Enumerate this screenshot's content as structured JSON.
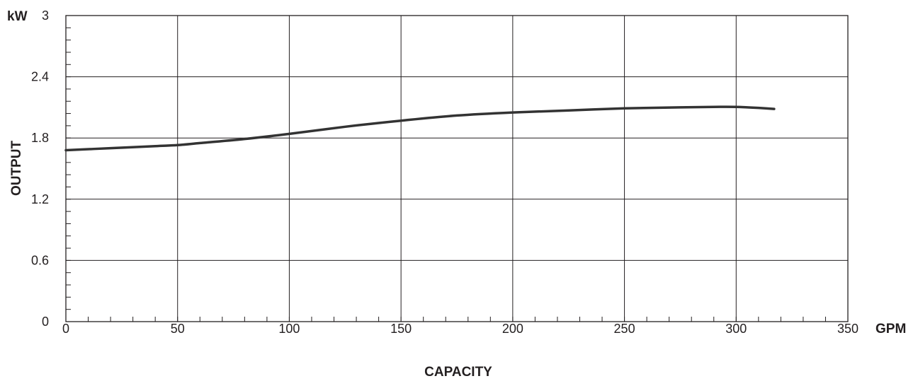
{
  "chart_data": {
    "type": "line",
    "title": "",
    "xlabel": "CAPACITY",
    "ylabel": "OUTPUT",
    "x_unit": "GPM",
    "y_unit": "kW",
    "xlim": [
      0,
      350
    ],
    "ylim": [
      0,
      3
    ],
    "x_ticks": [
      "0",
      "50",
      "100",
      "150",
      "200",
      "250",
      "300",
      "350"
    ],
    "y_ticks": [
      "0",
      "0.6",
      "1.2",
      "1.8",
      "2.4",
      "3"
    ],
    "grid": true,
    "legend": "none",
    "series": [
      {
        "color": "#333333",
        "x": [
          0,
          20,
          40,
          50,
          60,
          80,
          100,
          125,
          150,
          175,
          200,
          225,
          250,
          275,
          290,
          300,
          305,
          310,
          317
        ],
        "y": [
          1.68,
          1.7,
          1.72,
          1.73,
          1.75,
          1.79,
          1.84,
          1.91,
          1.97,
          2.02,
          2.05,
          2.07,
          2.09,
          2.1,
          2.105,
          2.105,
          2.1,
          2.095,
          2.085
        ]
      }
    ]
  }
}
